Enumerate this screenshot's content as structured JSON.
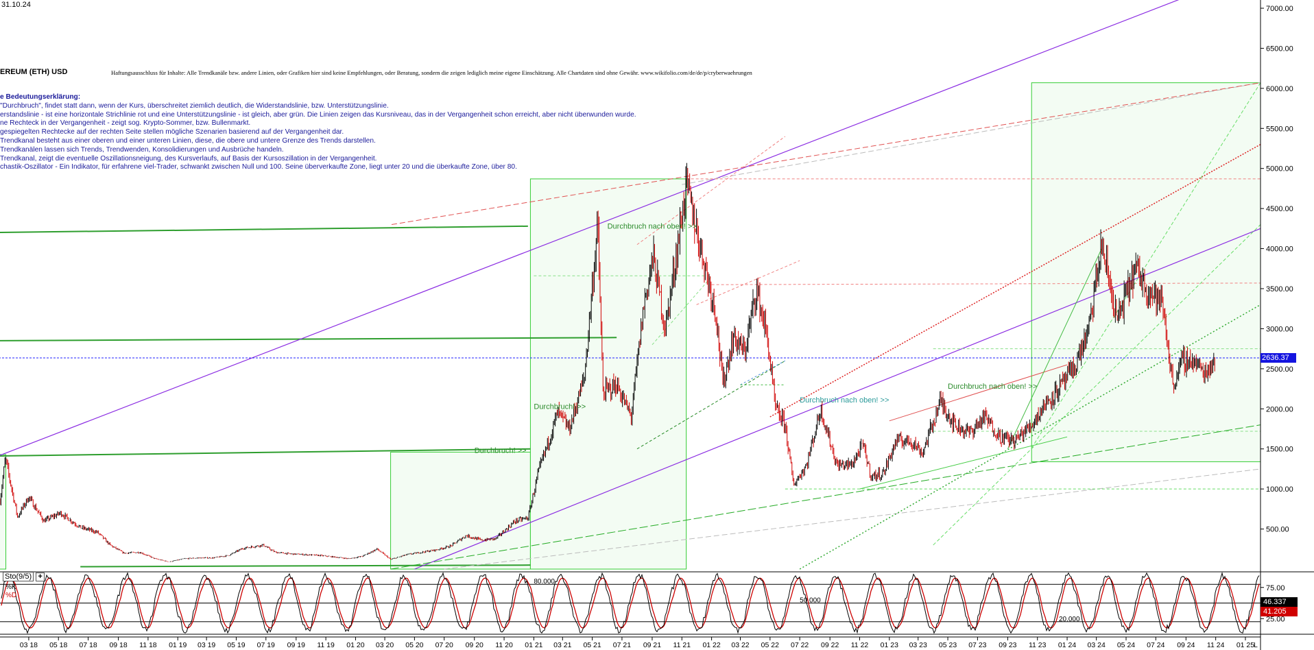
{
  "date_stamp": "31.10.24",
  "symbol": "EREUM (ETH) USD",
  "disclaimer": "Haftungsausschluss für Inhalte: Alle Trendkanäle bzw. andere Linien, oder Grafiken hier sind keine Empfehlungen, oder Beratung, sondern die zeigen lediglich meine eigene Einschätzung. Alle Chartdaten sind ohne Gewähr.  www.wikifolio.com/de/de/p/cryberwaehrungen",
  "legend_title": "e Bedeutungserklärung:",
  "legend_lines": [
    "\"Durchbruch\", findet statt dann, wenn der Kurs, überschreitet ziemlich deutlich, die Widerstandslinie, bzw. Unterstützungslinie.",
    "erstandslinie - ist eine horizontale Strichlinie rot und eine Unterstützungslinie - ist gleich, aber grün. Die Linien zeigen das Kursniveau, das in der Vergangenheit schon erreicht, aber nicht überwunden wurde.",
    "ne Rechteck in der Vergangenheit - zeigt sog. Krypto-Sommer, bzw. Bullenmarkt.",
    "gespiegelten Rechtecke auf der rechten Seite stellen mögliche Szenarien basierend auf der Vergangenheit dar.",
    "Trendkanal besteht aus einer oberen und einer unteren Linien, diese, die obere und untere Grenze des Trends darstellen.",
    "Trendkanälen lassen sich Trends, Trendwenden, Konsolidierungen und Ausbrüche handeln.",
    "Trendkanal, zeigt die eventuelle Oszillationsneigung, des Kursverlaufs, auf Basis der Kursoszillation in der Vergangenheit.",
    "chastik-Oszillator - Ein Indikator, für erfahrene viel-Trader, schwankt zwischen Null und 100. Seine überverkaufte Zone, liegt unter 20 und die überkaufte Zone, über 80."
  ],
  "annotations": [
    {
      "text": "Durchbruch nach oben! >>",
      "date": "2021-06",
      "price": 4250,
      "color": "#2a8a2a"
    },
    {
      "text": "Durchbruch! >>",
      "date": "2021-01",
      "price": 2000,
      "color": "#2a8a2a"
    },
    {
      "text": "Durchbruch! >>",
      "date": "2020-09",
      "price": 1450,
      "color": "#2a8a2a"
    },
    {
      "text": "Durchbruch nach oben! >>",
      "date": "2022-07",
      "price": 2080,
      "color": "#2a9a9a"
    },
    {
      "text": "Durchbruch nach oben! >>",
      "date": "2023-05",
      "price": 2250,
      "color": "#2a8a2a"
    }
  ],
  "current_price_label": "2636.37",
  "osc": {
    "label": "Sto(9/5)",
    "add_button": "+",
    "k_label": "%K",
    "d_label": "%D",
    "k_value": "46.337",
    "d_value": "41.205",
    "level_80": "80.000",
    "level_50": "50.000",
    "level_20": "20.000",
    "ticks": [
      "75.00",
      "25.00"
    ]
  },
  "x_tick_labels": [
    "03 18",
    "05 18",
    "07 18",
    "09 18",
    "11 18",
    "01 19",
    "03 19",
    "05 19",
    "07 19",
    "09 19",
    "11 19",
    "01 20",
    "03 20",
    "05 20",
    "07 20",
    "09 20",
    "11 20",
    "01 21",
    "03 21",
    "05 21",
    "07 21",
    "09 21",
    "11 21",
    "01 22",
    "03 22",
    "05 22",
    "07 22",
    "09 22",
    "11 22",
    "01 23",
    "03 23",
    "05 23",
    "07 23",
    "09 23",
    "11 23",
    "01 24",
    "03 24",
    "05 24",
    "07 24",
    "09 24",
    "11 24",
    "01 25"
  ],
  "x_axis_end_label": "L",
  "colors": {
    "candle_up": "#000000",
    "candle_down": "#d00000",
    "rect_green": "#33cc33",
    "rect_fill": "#f3fcf3",
    "trend_purple": "#8a2be2",
    "resistance_red": "#e05050",
    "support_green": "#2e9e2e",
    "current_blue": "#2020ff",
    "osc_k": "#000000",
    "osc_d": "#cc0000"
  },
  "chart_data": {
    "type": "line",
    "title": "",
    "xlabel": "",
    "ylabel": "",
    "x_range": [
      "2018-01-01",
      "2025-02-01"
    ],
    "ylim": [
      0,
      7000
    ],
    "y_ticks": [
      500,
      1000,
      1500,
      2000,
      2500,
      3000,
      3500,
      4000,
      4500,
      5000,
      5500,
      6000,
      6500,
      7000
    ],
    "y_tick_labels": [
      "500.00",
      "1000.00",
      "1500.00",
      "2000.00",
      "2500.00",
      "3000.00",
      "3500.00",
      "4000.00",
      "4500.00",
      "5000.00",
      "5500.00",
      "6000.00",
      "6500.00",
      "7000.00"
    ],
    "grid": false,
    "series": [
      {
        "x": [
          "2018-01-01",
          "2018-01-12",
          "2018-02-06",
          "2018-03-01",
          "2018-04-01",
          "2018-05-05",
          "2018-06-15",
          "2018-07-20",
          "2018-08-15",
          "2018-09-12",
          "2018-10-15",
          "2018-11-15",
          "2018-12-14",
          "2019-01-15",
          "2019-02-15",
          "2019-03-15",
          "2019-04-15",
          "2019-05-15",
          "2019-06-25",
          "2019-07-20",
          "2019-08-20",
          "2019-09-20",
          "2019-10-20",
          "2019-11-20",
          "2019-12-18",
          "2020-01-15",
          "2020-02-14",
          "2020-03-13",
          "2020-04-15",
          "2020-05-15",
          "2020-06-15",
          "2020-07-15",
          "2020-08-15",
          "2020-09-15",
          "2020-10-15",
          "2020-11-24",
          "2020-12-20",
          "2021-01-10",
          "2021-02-19",
          "2021-03-15",
          "2021-04-15",
          "2021-05-12",
          "2021-05-23",
          "2021-06-20",
          "2021-07-20",
          "2021-08-15",
          "2021-09-03",
          "2021-09-28",
          "2021-10-20",
          "2021-11-10",
          "2021-12-10",
          "2022-01-10",
          "2022-01-24",
          "2022-02-15",
          "2022-03-10",
          "2022-04-03",
          "2022-04-25",
          "2022-05-12",
          "2022-06-01",
          "2022-06-18",
          "2022-07-15",
          "2022-08-13",
          "2022-09-15",
          "2022-10-15",
          "2022-11-08",
          "2022-11-25",
          "2022-12-20",
          "2023-01-15",
          "2023-02-15",
          "2023-03-10",
          "2023-04-16",
          "2023-05-15",
          "2023-06-15",
          "2023-07-15",
          "2023-08-17",
          "2023-09-15",
          "2023-10-20",
          "2023-11-15",
          "2023-12-15",
          "2024-01-15",
          "2024-02-15",
          "2024-03-12",
          "2024-04-13",
          "2024-05-20",
          "2024-06-15",
          "2024-07-15",
          "2024-08-05",
          "2024-08-25",
          "2024-09-15",
          "2024-10-10",
          "2024-10-31"
        ],
        "values": [
          850,
          1380,
          650,
          900,
          600,
          700,
          520,
          460,
          300,
          200,
          210,
          130,
          90,
          130,
          140,
          140,
          170,
          260,
          300,
          210,
          190,
          180,
          170,
          150,
          130,
          160,
          250,
          120,
          180,
          210,
          240,
          290,
          420,
          360,
          380,
          600,
          640,
          1200,
          1950,
          1750,
          2400,
          4300,
          2200,
          2300,
          1900,
          3300,
          3900,
          3000,
          3900,
          4800,
          4000,
          3200,
          2300,
          2900,
          2700,
          3500,
          2900,
          2000,
          1800,
          1050,
          1300,
          2000,
          1300,
          1300,
          1550,
          1150,
          1200,
          1600,
          1600,
          1450,
          2100,
          1800,
          1700,
          1900,
          1650,
          1600,
          1800,
          2050,
          2250,
          2500,
          3000,
          4050,
          3100,
          3750,
          3500,
          3300,
          2300,
          2600,
          2600,
          2450,
          2630
        ]
      }
    ],
    "oscillator": {
      "name": "Sto(9/5)",
      "ylim": [
        0,
        100
      ],
      "levels": [
        80,
        50,
        20
      ],
      "k_last": 46.337,
      "d_last": 41.205
    }
  }
}
